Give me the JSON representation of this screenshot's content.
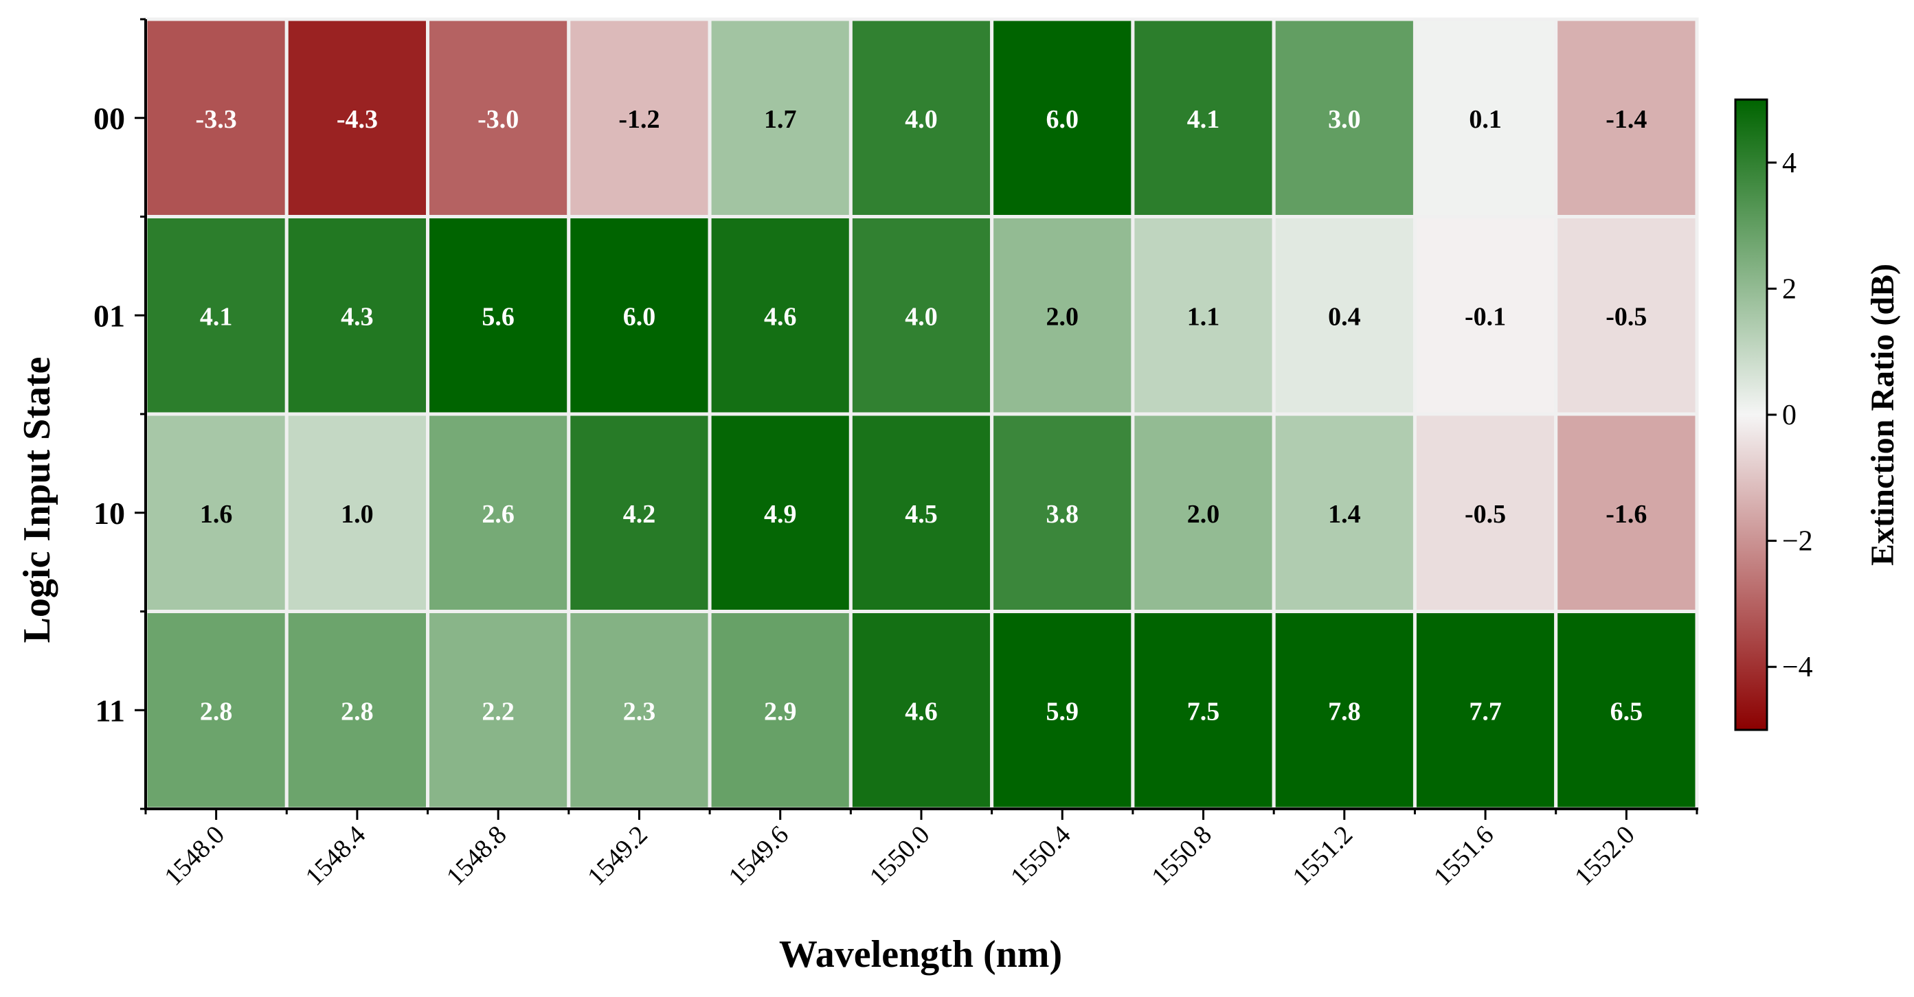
{
  "chart_data": {
    "type": "heatmap",
    "title": "",
    "xlabel": "Wavelength (nm)",
    "ylabel": "Logic Input State",
    "x_categories": [
      "1548.0",
      "1548.4",
      "1548.8",
      "1549.2",
      "1549.6",
      "1550.0",
      "1550.4",
      "1550.8",
      "1551.2",
      "1551.6",
      "1552.0"
    ],
    "y_categories": [
      "00",
      "01",
      "10",
      "11"
    ],
    "values": [
      [
        -3.3,
        -4.3,
        -3.0,
        -1.2,
        1.7,
        4.0,
        6.0,
        4.1,
        3.0,
        0.1,
        -1.4
      ],
      [
        4.1,
        4.3,
        5.6,
        6.0,
        4.6,
        4.0,
        2.0,
        1.1,
        0.4,
        -0.1,
        -0.5
      ],
      [
        1.6,
        1.0,
        2.6,
        4.2,
        4.9,
        4.5,
        3.8,
        2.0,
        1.4,
        -0.5,
        -1.6
      ],
      [
        2.8,
        2.8,
        2.2,
        2.3,
        2.9,
        4.6,
        5.9,
        7.5,
        7.8,
        7.7,
        6.5
      ]
    ],
    "cell_labels": [
      [
        "-3.3",
        "-4.3",
        "-3.0",
        "-1.2",
        "1.7",
        "4.0",
        "6.0",
        "4.1",
        "3.0",
        "0.1",
        "-1.4"
      ],
      [
        "4.1",
        "4.3",
        "5.6",
        "6.0",
        "4.6",
        "4.0",
        "2.0",
        "1.1",
        "0.4",
        "-0.1",
        "-0.5"
      ],
      [
        "1.6",
        "1.0",
        "2.6",
        "4.2",
        "4.9",
        "4.5",
        "3.8",
        "2.0",
        "1.4",
        "-0.5",
        "-1.6"
      ],
      [
        "2.8",
        "2.8",
        "2.2",
        "2.3",
        "2.9",
        "4.6",
        "5.9",
        "7.5",
        "7.8",
        "7.7",
        "6.5"
      ]
    ],
    "colorbar": {
      "label": "Extinction Ratio (dB)",
      "range": [
        -5,
        5
      ],
      "ticks": [
        4,
        2,
        0,
        -2,
        -4
      ],
      "tick_labels": [
        "4",
        "2",
        "0",
        "−2",
        "−4"
      ],
      "colors": {
        "low": "#8b0000",
        "mid": "#f5f5f5",
        "high": "#006400"
      }
    },
    "grid": false
  }
}
